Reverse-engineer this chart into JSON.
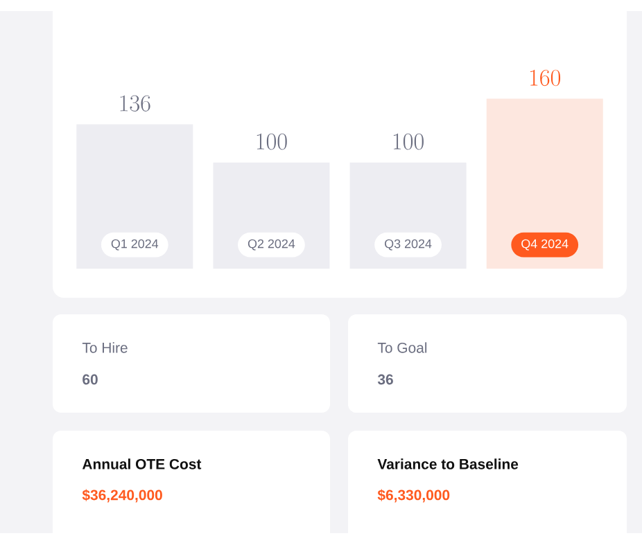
{
  "chart_data": [
    {
      "type": "bar",
      "categories": [
        "Q1 2024",
        "Q2 2024",
        "Q3 2024",
        "Q4 2024"
      ],
      "values": [
        136,
        100,
        100,
        160
      ],
      "colors": [
        "#ededf2",
        "#ededf2",
        "#ededf2",
        "#fde7df"
      ],
      "data_labels": true
    },
    {
      "type": "other",
      "annotations": [
        "To Hire",
        "60",
        "To Goal",
        "36",
        "Annual OTE Cost",
        "$36,240,000",
        "Variance to Baseline",
        "$6,330,000"
      ]
    }
  ]
}
